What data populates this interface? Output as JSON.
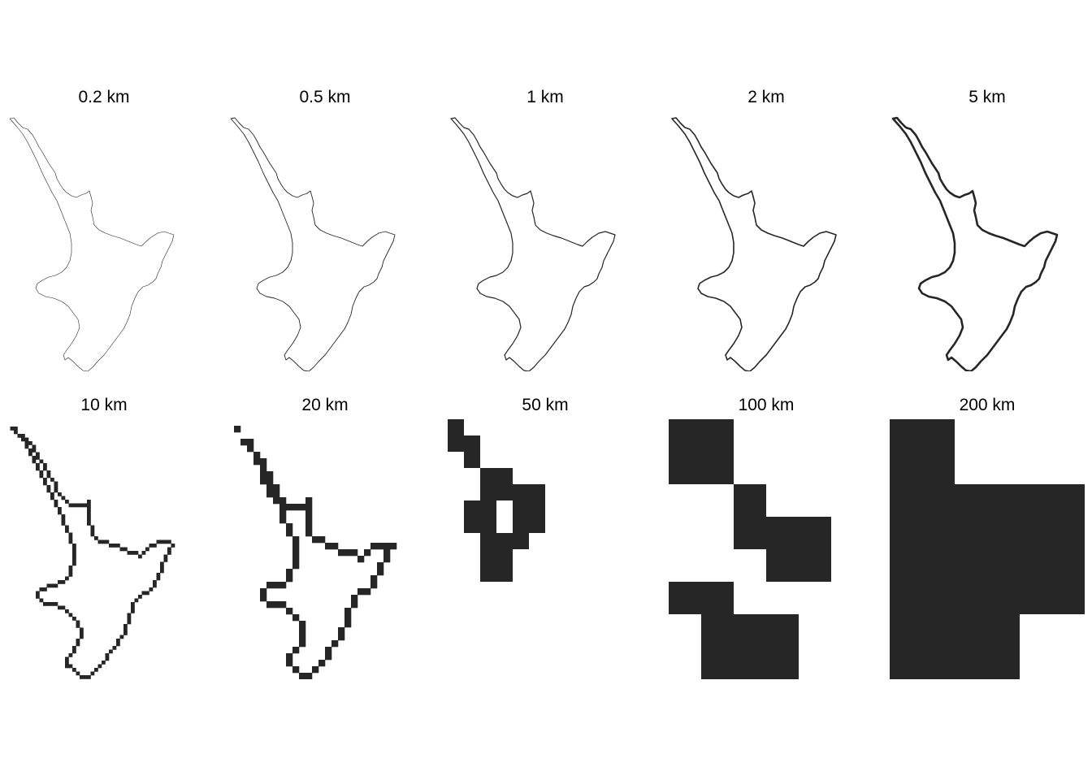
{
  "colors": {
    "land": "#262626",
    "background": "#ffffff"
  },
  "panels": [
    {
      "label": "0.2 km",
      "resolution_km": 0.2
    },
    {
      "label": "0.5 km",
      "resolution_km": 0.5
    },
    {
      "label": "1 km",
      "resolution_km": 1
    },
    {
      "label": "2 km",
      "resolution_km": 2
    },
    {
      "label": "5 km",
      "resolution_km": 5
    },
    {
      "label": "10 km",
      "resolution_km": 10
    },
    {
      "label": "20 km",
      "resolution_km": 20
    },
    {
      "label": "50 km",
      "resolution_km": 50
    },
    {
      "label": "100 km",
      "resolution_km": 100
    },
    {
      "label": "200 km",
      "resolution_km": 200
    }
  ]
}
